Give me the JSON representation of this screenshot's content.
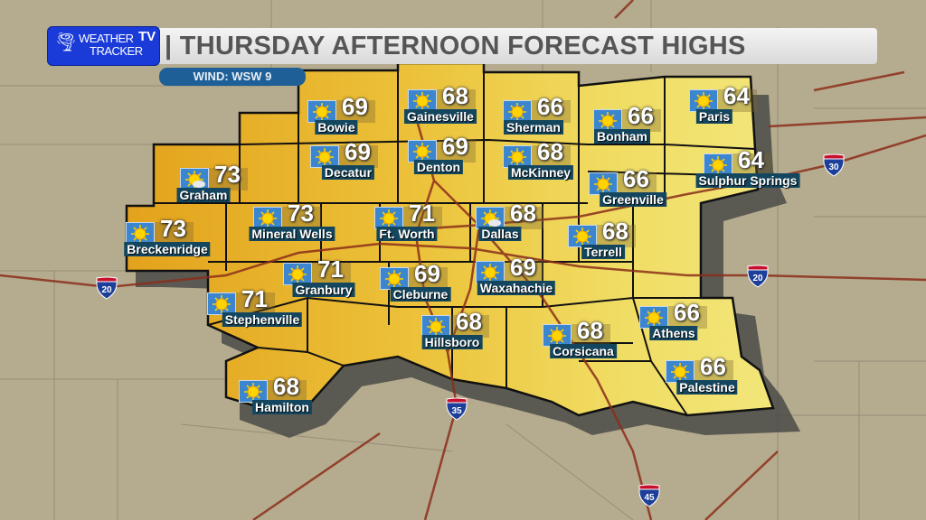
{
  "header": {
    "logo": {
      "line1": "WEATHER",
      "line2": "TRACKER",
      "badge": "TV"
    },
    "title": "| THURSDAY AFTERNOON FORECAST HIGHS",
    "wind": "WIND: WSW 9"
  },
  "colors": {
    "hot": "#e6a61e",
    "mild": "#f1e26c",
    "logo_blue": "#1a3bd8",
    "wind_pill": "#1d5f96",
    "label_bg": "#14475f"
  },
  "cities": [
    {
      "name": "Bowie",
      "temp": "69",
      "icon": "sunny-icon"
    },
    {
      "name": "Gainesville",
      "temp": "68",
      "icon": "sunny-icon"
    },
    {
      "name": "Sherman",
      "temp": "66",
      "icon": "sunny-icon"
    },
    {
      "name": "Bonham",
      "temp": "66",
      "icon": "sunny-icon"
    },
    {
      "name": "Paris",
      "temp": "64",
      "icon": "sunny-icon"
    },
    {
      "name": "Decatur",
      "temp": "69",
      "icon": "sunny-icon"
    },
    {
      "name": "Denton",
      "temp": "69",
      "icon": "sunny-icon"
    },
    {
      "name": "McKinney",
      "temp": "68",
      "icon": "sunny-icon"
    },
    {
      "name": "Sulphur Springs",
      "temp": "64",
      "icon": "sunny-icon"
    },
    {
      "name": "Graham",
      "temp": "73",
      "icon": "partly-cloudy-icon"
    },
    {
      "name": "Greenville",
      "temp": "66",
      "icon": "sunny-icon"
    },
    {
      "name": "Breckenridge",
      "temp": "73",
      "icon": "sunny-icon"
    },
    {
      "name": "Mineral Wells",
      "temp": "73",
      "icon": "sunny-icon"
    },
    {
      "name": "Ft. Worth",
      "temp": "71",
      "icon": "sunny-icon"
    },
    {
      "name": "Dallas",
      "temp": "68",
      "icon": "partly-cloudy-icon"
    },
    {
      "name": "Terrell",
      "temp": "68",
      "icon": "sunny-icon"
    },
    {
      "name": "Granbury",
      "temp": "71",
      "icon": "sunny-icon"
    },
    {
      "name": "Cleburne",
      "temp": "69",
      "icon": "sunny-icon"
    },
    {
      "name": "Waxahachie",
      "temp": "69",
      "icon": "sunny-icon"
    },
    {
      "name": "Stephenville",
      "temp": "71",
      "icon": "sunny-icon"
    },
    {
      "name": "Hillsboro",
      "temp": "68",
      "icon": "sunny-icon"
    },
    {
      "name": "Corsicana",
      "temp": "68",
      "icon": "sunny-icon"
    },
    {
      "name": "Athens",
      "temp": "66",
      "icon": "sunny-icon"
    },
    {
      "name": "Palestine",
      "temp": "66",
      "icon": "sunny-icon"
    },
    {
      "name": "Hamilton",
      "temp": "68",
      "icon": "sunny-icon"
    }
  ],
  "interstates": [
    "30",
    "20",
    "20",
    "35",
    "45"
  ]
}
